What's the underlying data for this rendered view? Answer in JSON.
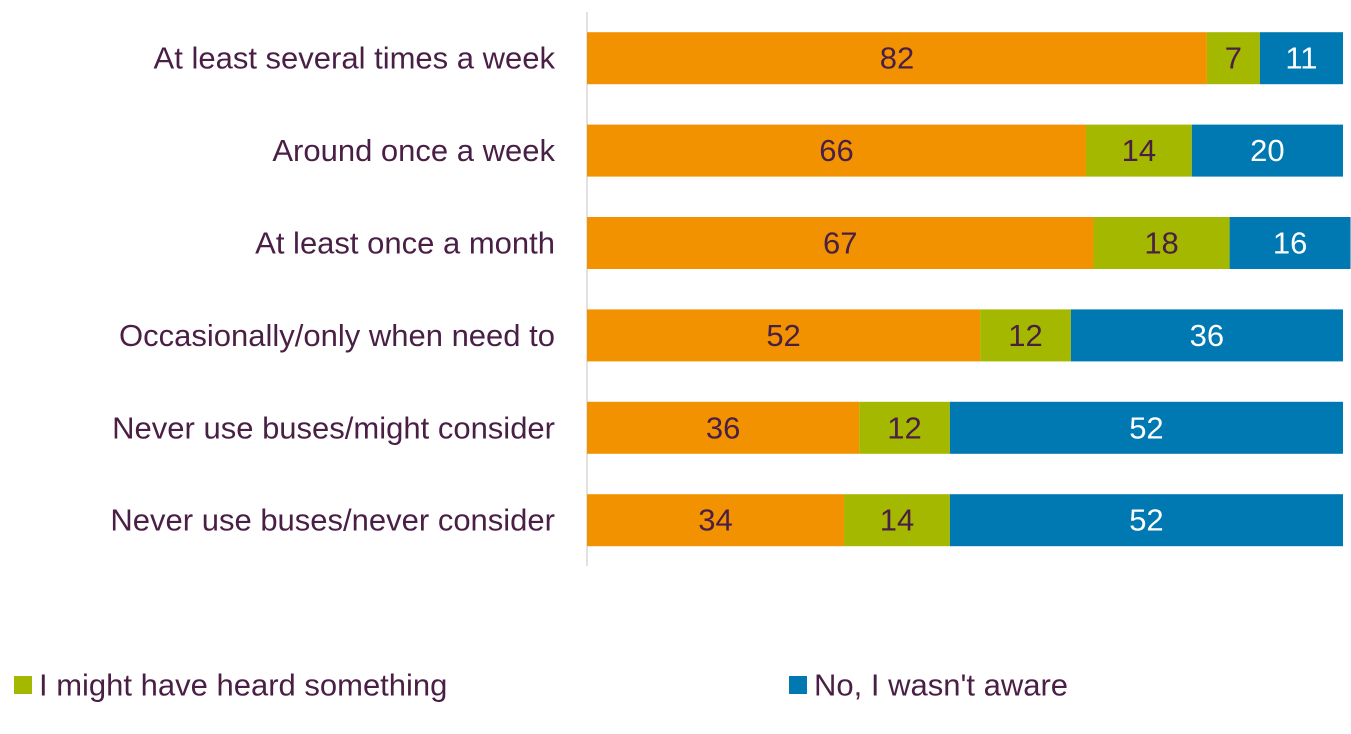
{
  "chart_data": {
    "type": "bar",
    "orientation": "horizontal",
    "stacked": true,
    "categories": [
      "At least several times a week",
      "Around once a week",
      "At least once a month",
      "Occasionally/only when need to",
      "Never use buses/might consider",
      "Never use buses/never consider"
    ],
    "series": [
      {
        "name": "",
        "color": "#f39200",
        "label_color": "#4a1f45",
        "values": [
          82,
          66,
          67,
          52,
          36,
          34
        ]
      },
      {
        "name": "I might have heard something",
        "color": "#a5b800",
        "label_color": "#4a1f45",
        "values": [
          7,
          14,
          18,
          12,
          12,
          14
        ]
      },
      {
        "name": "No, I wasn't aware",
        "color": "#0079b2",
        "label_color": "#ffffff",
        "values": [
          11,
          20,
          16,
          36,
          52,
          52
        ]
      }
    ],
    "xlim": [
      0,
      100
    ],
    "grid": false,
    "legend_position": "bottom"
  }
}
